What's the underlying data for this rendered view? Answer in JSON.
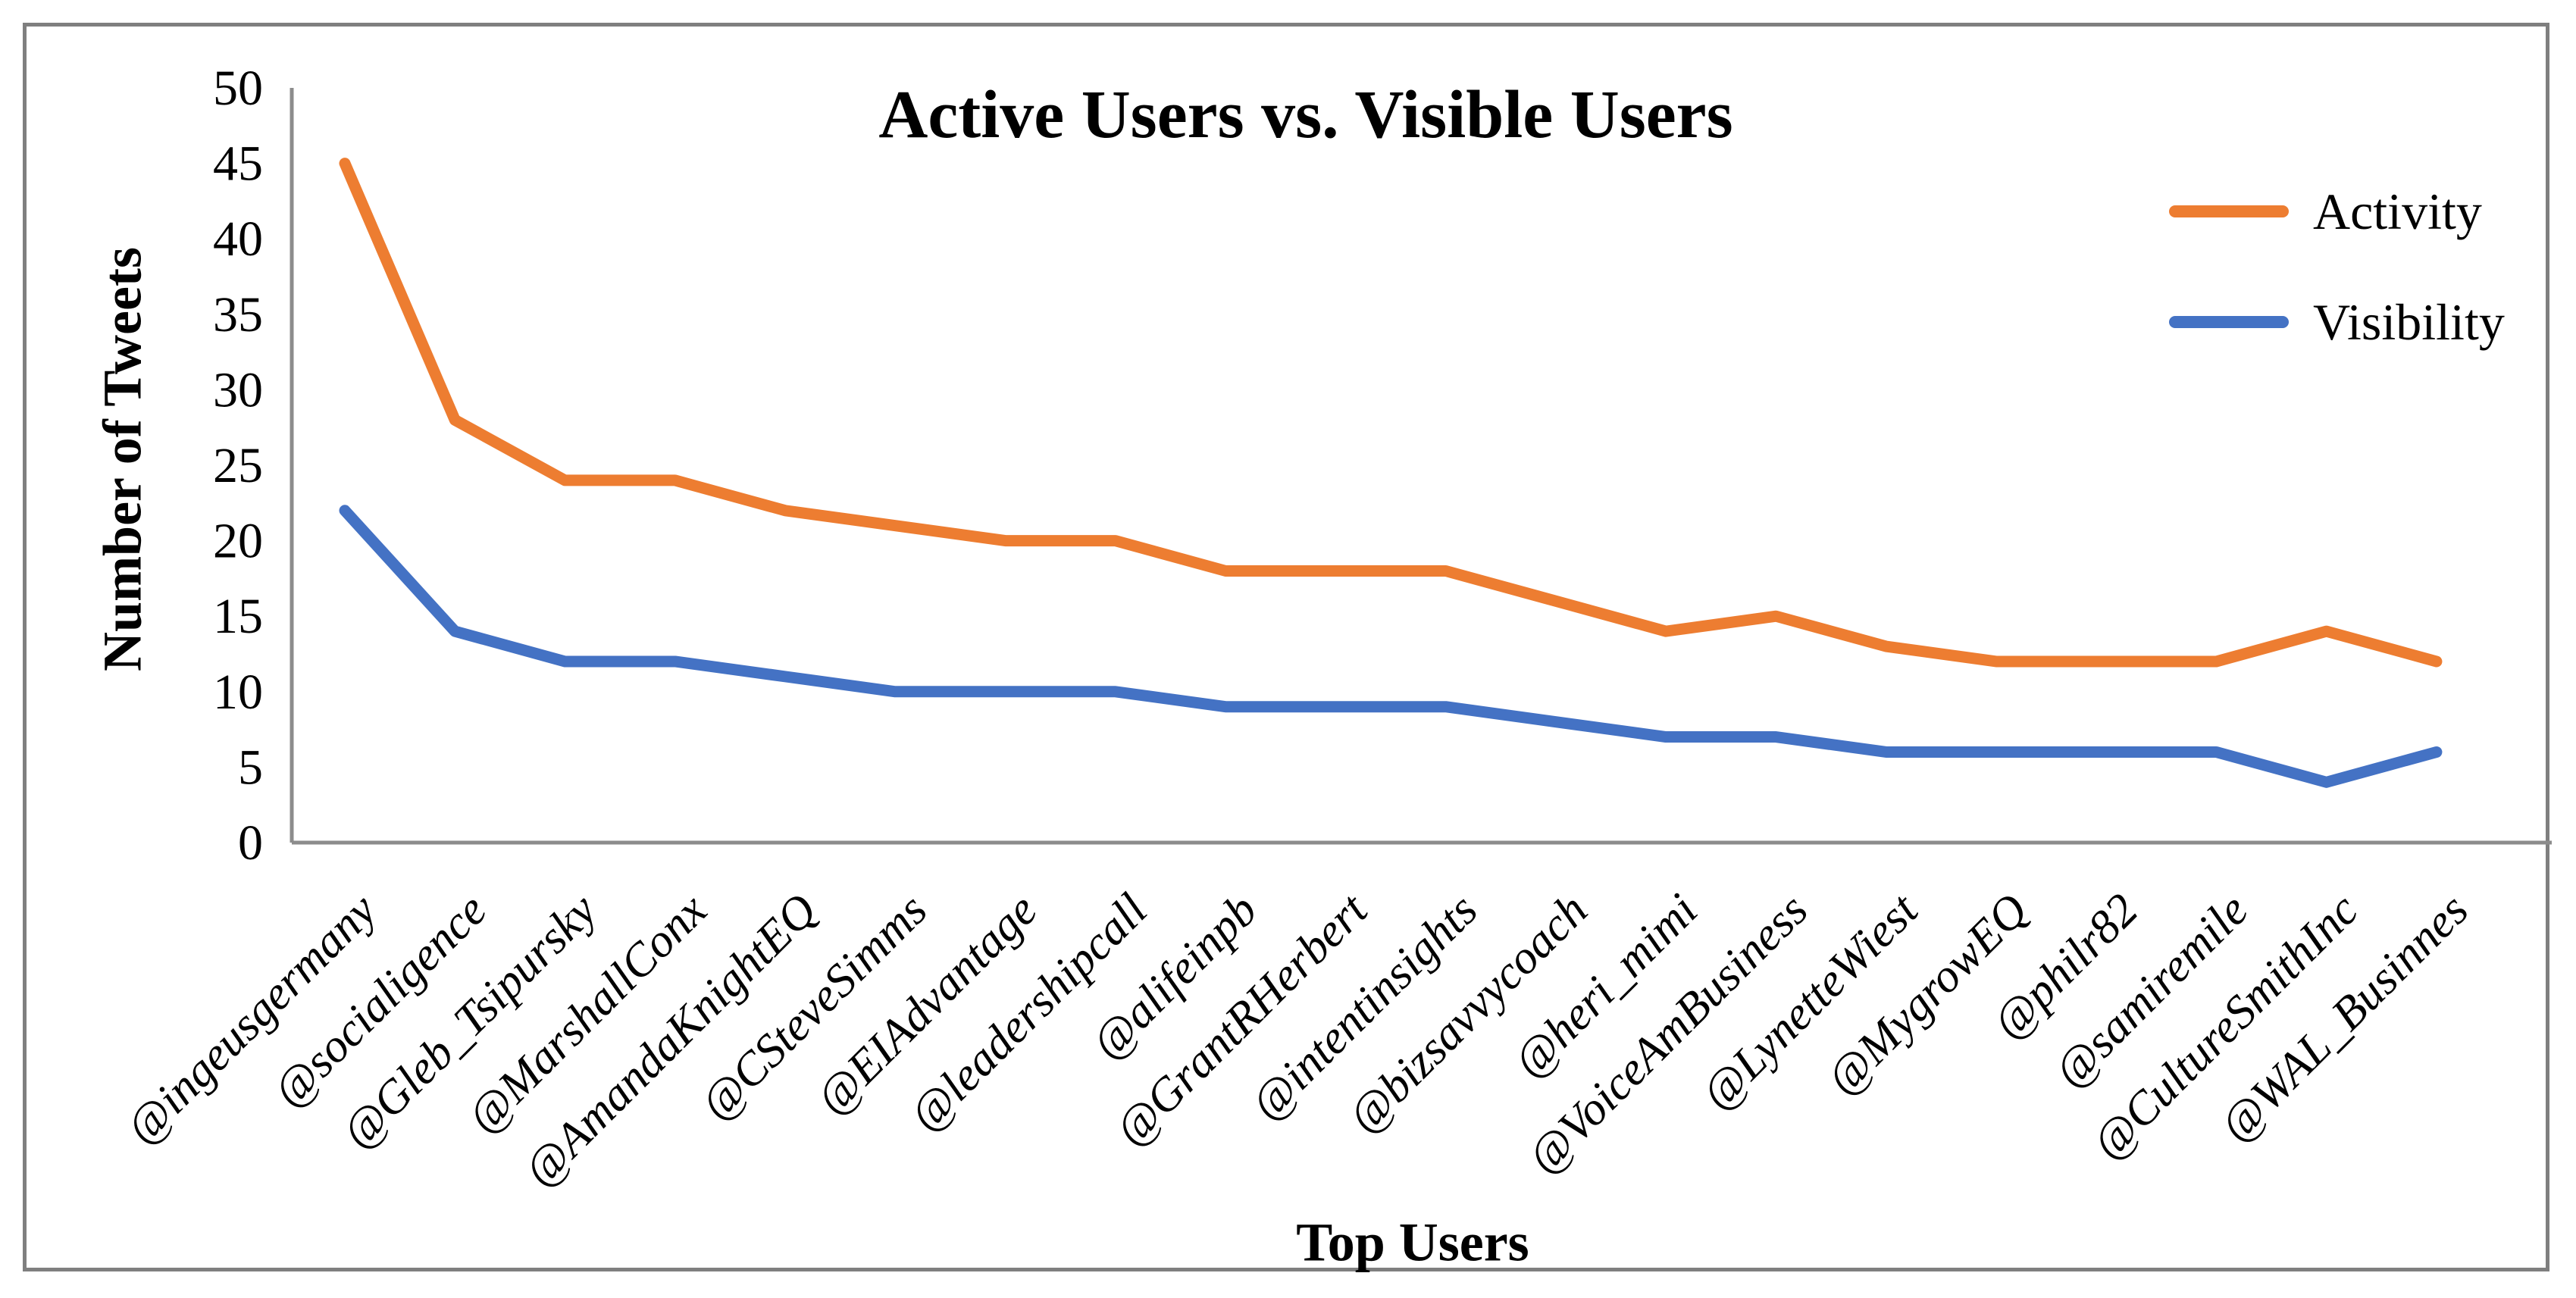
{
  "chart_data": {
    "type": "line",
    "title": "Active Users vs. Visible Users",
    "xlabel": "Top Users",
    "ylabel": "Number of Tweets",
    "ylim": [
      0,
      50
    ],
    "ytick_step": 5,
    "grid": false,
    "legend_position": "top-right",
    "categories": [
      "@ingeusgermany",
      "@socialigence",
      "@Gleb_Tsipursky",
      "@MarshallConx",
      "@AmandaKnightEQ",
      "@CSteveSimms",
      "@EIAdvantage",
      "@leadershipcall",
      "@alifeinpb",
      "@GrantRHerbert",
      "@intentinsights",
      "@bizsavvycoach",
      "@heri_mimi",
      "@VoiceAmBusiness",
      "@LynetteWiest",
      "@MygrowEQ",
      "@philr82",
      "@samiremile",
      "@CultureSmithInc",
      "@WAL_Businnes"
    ],
    "series": [
      {
        "name": "Activity",
        "color": "#ED7D31",
        "values": [
          45,
          28,
          24,
          24,
          22,
          21,
          20,
          20,
          18,
          18,
          18,
          16,
          14,
          15,
          13,
          12,
          12,
          12,
          14,
          12
        ]
      },
      {
        "name": "Visibility",
        "color": "#4472C4",
        "values": [
          22,
          14,
          12,
          12,
          11,
          10,
          10,
          10,
          9,
          9,
          9,
          8,
          7,
          7,
          6,
          6,
          6,
          6,
          4,
          6
        ]
      }
    ]
  },
  "frame": {
    "background_color": "#FFFFFF",
    "border_color": "#7F7F7F",
    "axis_color": "#8C8C8C",
    "text_color": "#000000"
  }
}
